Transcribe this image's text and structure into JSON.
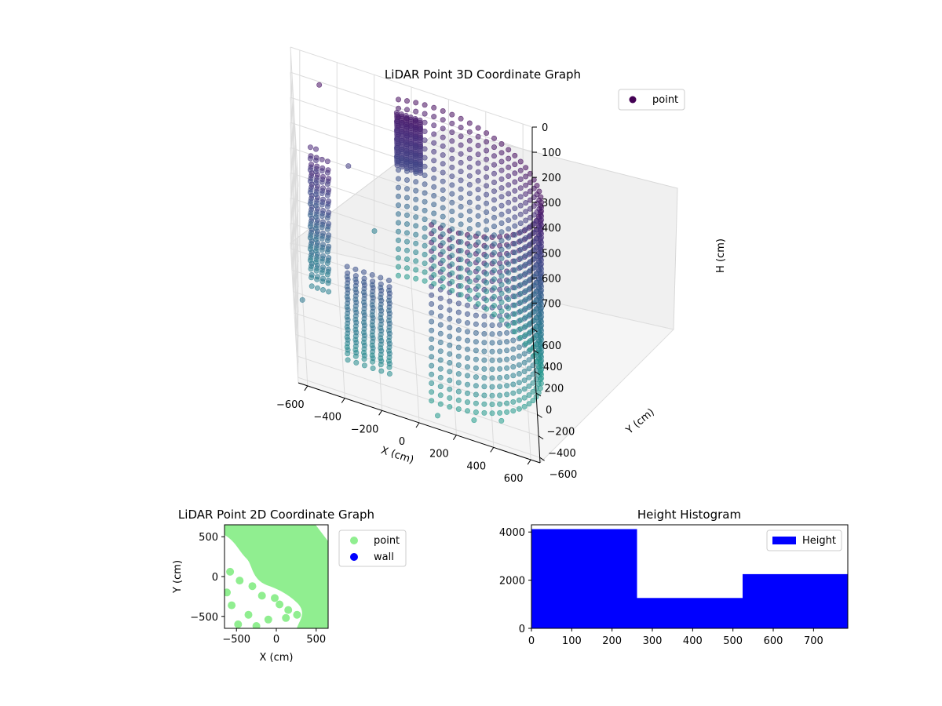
{
  "chart_data": [
    {
      "type": "scatter",
      "projection": "3d",
      "title": "LiDAR Point 3D Coordinate Graph",
      "xlabel": "X (cm)",
      "ylabel": "Y (cm)",
      "zlabel": "H (cm)",
      "x_ticks": [
        "−600",
        "−400",
        "−200",
        "0",
        "200",
        "400",
        "600"
      ],
      "y_ticks": [
        "−600",
        "−400",
        "−200",
        "0",
        "200",
        "400",
        "600"
      ],
      "z_ticks": [
        "0",
        "100",
        "200",
        "300",
        "400",
        "500",
        "600",
        "700"
      ],
      "xlim": [
        -650,
        650
      ],
      "ylim": [
        -650,
        650
      ],
      "zlim": [
        0,
        780
      ],
      "z_inverted": true,
      "grid": true,
      "legend": {
        "position": "upper-right",
        "entries": [
          {
            "label": "point",
            "color": "#440154"
          }
        ]
      },
      "colormap": "viridis",
      "shape": "curved wall arc plus scattered side clusters",
      "series": [
        {
          "name": "point"
        }
      ]
    },
    {
      "type": "scatter",
      "title": "LiDAR Point 2D Coordinate Graph",
      "xlabel": "X (cm)",
      "ylabel": "Y (cm)",
      "x_ticks": [
        "−500",
        "0",
        "500"
      ],
      "y_ticks": [
        "500",
        "0",
        "−500"
      ],
      "xlim": [
        -650,
        650
      ],
      "ylim": [
        -650,
        650
      ],
      "legend": {
        "position": "outside-right",
        "entries": [
          {
            "label": "point",
            "color": "#90ee90"
          },
          {
            "label": "wall",
            "color": "#0000ff"
          }
        ]
      },
      "series": [
        {
          "name": "point",
          "color": "#90ee90",
          "x": [
            -580,
            -460,
            -300,
            -180,
            -20,
            40,
            150,
            260,
            -560,
            -350,
            -100,
            120,
            -620,
            -480,
            -250
          ],
          "y": [
            60,
            -50,
            -120,
            -240,
            -270,
            -350,
            -420,
            -480,
            -360,
            -480,
            -540,
            -520,
            -200,
            -600,
            -620
          ]
        }
      ]
    },
    {
      "type": "bar",
      "title": "Height Histogram",
      "xlabel": "",
      "ylabel": "",
      "x_ticks": [
        "0",
        "100",
        "200",
        "300",
        "400",
        "500",
        "600",
        "700"
      ],
      "y_ticks": [
        "0",
        "2000",
        "4000"
      ],
      "xlim": [
        0,
        785
      ],
      "ylim": [
        0,
        4300
      ],
      "legend": {
        "position": "upper-right",
        "entries": [
          {
            "label": "Height",
            "color": "#0000ff"
          }
        ]
      },
      "series": [
        {
          "name": "Height",
          "color": "#0000ff",
          "bins": [
            [
              0,
              262
            ],
            [
              262,
              524
            ],
            [
              524,
              785
            ]
          ],
          "values": [
            4120,
            1260,
            2250
          ]
        }
      ]
    }
  ]
}
